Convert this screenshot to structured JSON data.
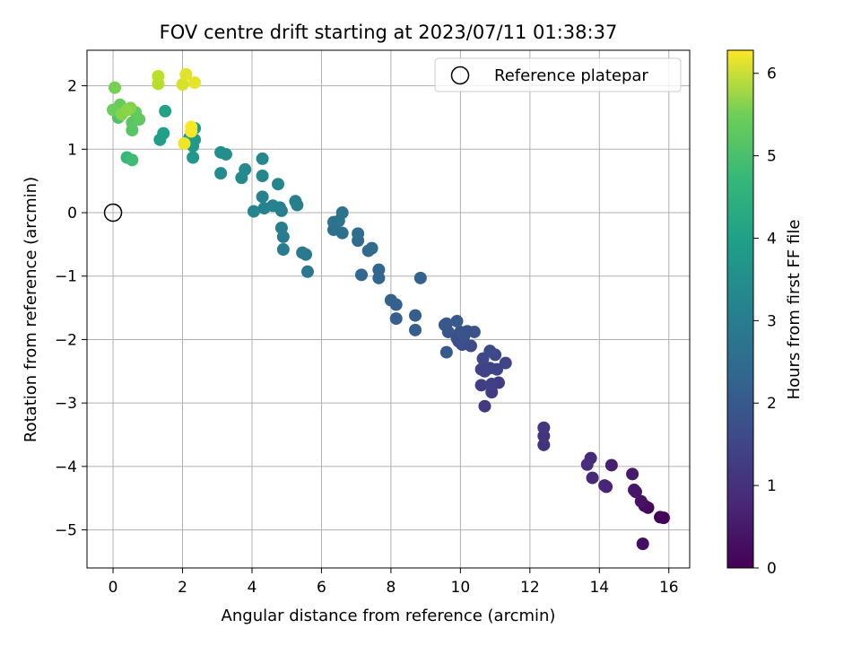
{
  "chart_data": {
    "type": "scatter",
    "title": "FOV centre drift starting at 2023/07/11 01:38:37",
    "xlabel": "Angular distance from reference (arcmin)",
    "ylabel": "Rotation from reference (arcmin)",
    "xlim": [
      -0.75,
      16.6
    ],
    "ylim": [
      -5.6,
      2.56
    ],
    "xticks": [
      0,
      2,
      4,
      6,
      8,
      10,
      12,
      14,
      16
    ],
    "yticks": [
      -5,
      -4,
      -3,
      -2,
      -1,
      0,
      1,
      2
    ],
    "xtick_labels": [
      "0",
      "2",
      "4",
      "6",
      "8",
      "10",
      "12",
      "14",
      "16"
    ],
    "ytick_labels": [
      "−5",
      "−4",
      "−3",
      "−2",
      "−1",
      "0",
      "1",
      "2"
    ],
    "grid": true,
    "legend": {
      "position": "top-right",
      "entries": [
        {
          "label": "Reference platepar",
          "marker": "open-circle"
        }
      ]
    },
    "reference_point": {
      "x": 0,
      "y": 0
    },
    "colorbar": {
      "label": "Hours from first FF file",
      "range": [
        0,
        6.28
      ],
      "ticks": [
        0,
        1,
        2,
        3,
        4,
        5,
        6
      ],
      "tick_labels": [
        "0",
        "1",
        "2",
        "3",
        "4",
        "5",
        "6"
      ],
      "colormap": "viridis"
    },
    "series": [
      {
        "points": [
          [
            15.85,
            -4.81,
            0.05
          ],
          [
            15.75,
            -4.8,
            0.08
          ],
          [
            15.4,
            -4.65,
            0.15
          ],
          [
            15.3,
            -4.62,
            0.2
          ],
          [
            15.25,
            -5.22,
            0.25
          ],
          [
            15.2,
            -4.55,
            0.3
          ],
          [
            15.05,
            -4.4,
            0.35
          ],
          [
            15.0,
            -4.37,
            0.4
          ],
          [
            14.95,
            -4.12,
            0.45
          ],
          [
            14.35,
            -3.98,
            0.55
          ],
          [
            14.2,
            -4.32,
            0.6
          ],
          [
            14.15,
            -4.3,
            0.65
          ],
          [
            13.8,
            -4.18,
            0.7
          ],
          [
            13.75,
            -3.87,
            0.75
          ],
          [
            13.65,
            -3.97,
            0.8
          ],
          [
            12.4,
            -3.66,
            0.9
          ],
          [
            12.4,
            -3.52,
            0.95
          ],
          [
            12.4,
            -3.39,
            1.0
          ],
          [
            10.7,
            -3.05,
            1.1
          ],
          [
            10.9,
            -2.83,
            1.12
          ],
          [
            11.1,
            -2.68,
            1.15
          ],
          [
            10.6,
            -2.72,
            1.18
          ],
          [
            10.9,
            -2.7,
            1.2
          ],
          [
            10.7,
            -2.5,
            1.22
          ],
          [
            10.6,
            -2.47,
            1.25
          ],
          [
            10.85,
            -2.45,
            1.27
          ],
          [
            11.05,
            -2.47,
            1.3
          ],
          [
            11.3,
            -2.37,
            1.32
          ],
          [
            10.65,
            -2.3,
            1.35
          ],
          [
            11.0,
            -2.24,
            1.37
          ],
          [
            10.85,
            -2.18,
            1.4
          ],
          [
            10.3,
            -2.1,
            1.45
          ],
          [
            10.05,
            -2.08,
            1.5
          ],
          [
            9.95,
            -2.03,
            1.52
          ],
          [
            9.9,
            -1.98,
            1.55
          ],
          [
            10.1,
            -1.95,
            1.58
          ],
          [
            10.2,
            -1.87,
            1.6
          ],
          [
            10.4,
            -1.88,
            1.62
          ],
          [
            10.0,
            -1.88,
            1.65
          ],
          [
            9.65,
            -1.88,
            1.68
          ],
          [
            9.55,
            -1.77,
            1.7
          ],
          [
            9.6,
            -1.75,
            1.72
          ],
          [
            9.9,
            -1.71,
            1.75
          ],
          [
            9.6,
            -2.2,
            1.78
          ],
          [
            8.7,
            -1.62,
            1.85
          ],
          [
            8.7,
            -1.85,
            1.88
          ],
          [
            8.15,
            -1.67,
            1.9
          ],
          [
            8.15,
            -1.45,
            1.93
          ],
          [
            8.0,
            -1.38,
            1.95
          ],
          [
            8.85,
            -1.03,
            2.0
          ],
          [
            7.65,
            -1.03,
            2.05
          ],
          [
            7.65,
            -0.9,
            2.08
          ],
          [
            7.15,
            -0.98,
            2.1
          ],
          [
            7.45,
            -0.56,
            2.15
          ],
          [
            7.35,
            -0.6,
            2.18
          ],
          [
            7.05,
            -0.44,
            2.2
          ],
          [
            7.05,
            -0.33,
            2.22
          ],
          [
            6.35,
            -0.27,
            2.3
          ],
          [
            6.6,
            -0.32,
            2.32
          ],
          [
            6.35,
            -0.15,
            2.35
          ],
          [
            6.5,
            -0.13,
            2.38
          ],
          [
            6.6,
            0.0,
            2.4
          ],
          [
            5.6,
            -0.93,
            2.5
          ],
          [
            5.55,
            -0.66,
            2.52
          ],
          [
            5.45,
            -0.63,
            2.55
          ],
          [
            4.9,
            -0.58,
            2.6
          ],
          [
            4.9,
            -0.38,
            2.62
          ],
          [
            4.85,
            -0.24,
            2.65
          ],
          [
            5.3,
            0.12,
            2.68
          ],
          [
            5.25,
            0.18,
            2.7
          ],
          [
            4.85,
            0.03,
            2.72
          ],
          [
            4.8,
            0.08,
            2.75
          ],
          [
            4.6,
            0.11,
            2.78
          ],
          [
            4.35,
            0.07,
            2.8
          ],
          [
            4.3,
            0.25,
            2.82
          ],
          [
            4.05,
            0.02,
            2.85
          ],
          [
            4.75,
            0.45,
            2.9
          ],
          [
            4.3,
            0.58,
            2.92
          ],
          [
            4.3,
            0.85,
            2.95
          ],
          [
            3.8,
            0.68,
            3.0
          ],
          [
            3.7,
            0.55,
            3.02
          ],
          [
            3.1,
            0.62,
            3.05
          ],
          [
            3.25,
            0.92,
            3.1
          ],
          [
            3.1,
            0.95,
            3.12
          ],
          [
            2.3,
            0.87,
            3.3
          ],
          [
            2.3,
            1.05,
            3.32
          ],
          [
            2.35,
            1.15,
            3.35
          ],
          [
            2.2,
            1.18,
            3.38
          ],
          [
            2.35,
            1.33,
            3.4
          ],
          [
            1.35,
            1.15,
            3.5
          ],
          [
            1.45,
            1.25,
            3.55
          ],
          [
            1.5,
            1.6,
            3.6
          ],
          [
            0.4,
            0.87,
            4.2
          ],
          [
            0.55,
            0.83,
            4.3
          ],
          [
            0.15,
            1.5,
            4.5
          ],
          [
            0.55,
            1.3,
            4.6
          ],
          [
            0.55,
            1.42,
            4.65
          ],
          [
            0.75,
            1.47,
            4.7
          ],
          [
            0.65,
            1.58,
            4.75
          ],
          [
            0.2,
            1.7,
            4.8
          ],
          [
            0.0,
            1.62,
            4.85
          ],
          [
            0.05,
            1.97,
            4.95
          ],
          [
            0.5,
            1.65,
            5.05
          ],
          [
            0.25,
            1.55,
            5.1
          ],
          [
            0.4,
            1.62,
            5.15
          ],
          [
            1.3,
            2.03,
            5.6
          ],
          [
            1.3,
            2.15,
            5.65
          ],
          [
            2.0,
            2.02,
            5.9
          ],
          [
            2.1,
            2.18,
            6.0
          ],
          [
            2.35,
            2.05,
            6.05
          ],
          [
            2.05,
            1.09,
            6.15
          ],
          [
            2.25,
            1.28,
            6.2
          ],
          [
            2.25,
            1.35,
            6.25
          ]
        ]
      }
    ]
  }
}
